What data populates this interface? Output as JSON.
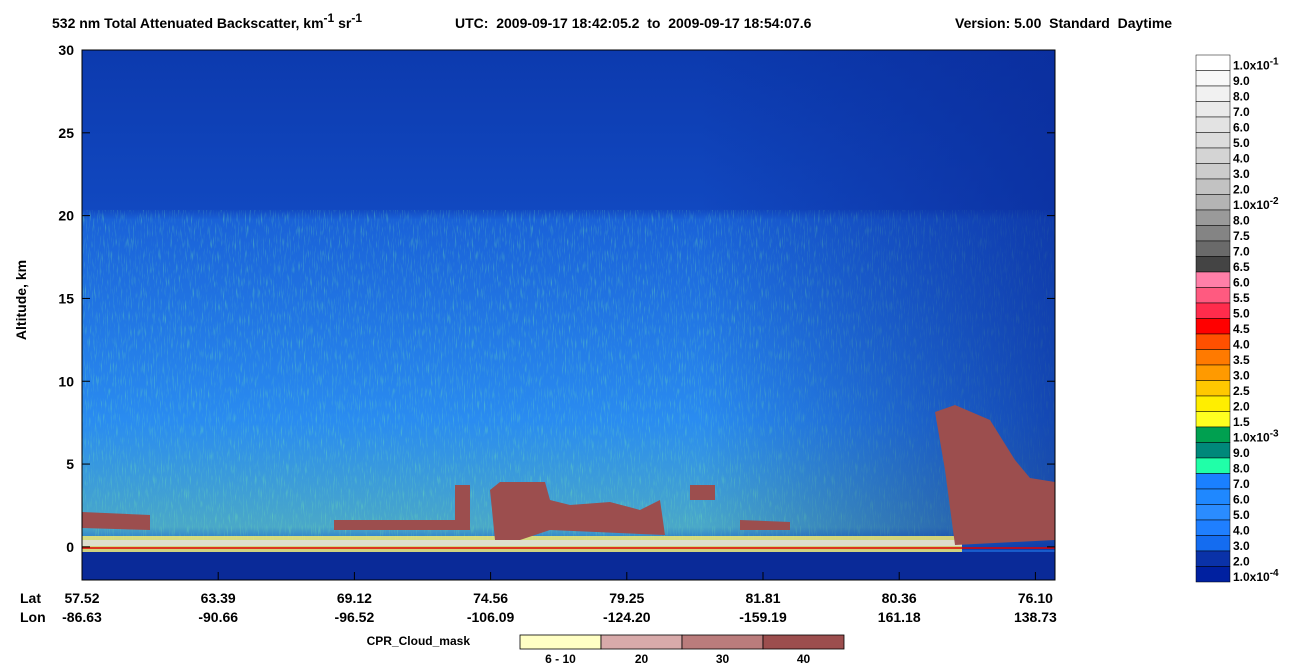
{
  "chart_data": {
    "type": "heatmap",
    "title": {
      "text": "532 nm Total Attenuated Backscatter, km",
      "sup1": "-1",
      "mid": " sr",
      "sup2": "-1",
      "utc": "UTC:  2009-09-17 18:42:05.2  to  2009-09-17 18:54:07.6",
      "version": "Version: 5.00  Standard  Daytime"
    },
    "y_label": "Altitude, km",
    "ylim": [
      -2,
      30
    ],
    "yticks": [
      0,
      5,
      10,
      15,
      20,
      25,
      30
    ],
    "x_row_labels": [
      "Lat",
      "Lon"
    ],
    "lat": [
      "57.52",
      "63.39",
      "69.12",
      "74.56",
      "79.25",
      "81.81",
      "80.36",
      "76.10"
    ],
    "lon": [
      "-86.63",
      "-90.66",
      "-96.52",
      "-106.09",
      "-124.20",
      "-159.19",
      "161.18",
      "138.73"
    ],
    "colorbar": [
      {
        "label": "1.0x10",
        "sup": "-1",
        "color": "#ffffff"
      },
      {
        "label": "9.0",
        "color": "#f8f8f8"
      },
      {
        "label": "8.0",
        "color": "#f1f1f1"
      },
      {
        "label": "7.0",
        "color": "#eaeaea"
      },
      {
        "label": "6.0",
        "color": "#e3e3e3"
      },
      {
        "label": "5.0",
        "color": "#dcdcdc"
      },
      {
        "label": "4.0",
        "color": "#d4d4d4"
      },
      {
        "label": "3.0",
        "color": "#cccccc"
      },
      {
        "label": "2.0",
        "color": "#c2c2c2"
      },
      {
        "label": "1.0x10",
        "sup": "-2",
        "color": "#b4b4b4"
      },
      {
        "label": "8.0",
        "color": "#9a9a9a"
      },
      {
        "label": "7.5",
        "color": "#848484"
      },
      {
        "label": "7.0",
        "color": "#6a6a6a"
      },
      {
        "label": "6.5",
        "color": "#444444"
      },
      {
        "label": "6.0",
        "color": "#ff7fa8"
      },
      {
        "label": "5.5",
        "color": "#ff5a80"
      },
      {
        "label": "5.0",
        "color": "#ff2c4c"
      },
      {
        "label": "4.5",
        "color": "#ff0000"
      },
      {
        "label": "4.0",
        "color": "#ff5000"
      },
      {
        "label": "3.5",
        "color": "#ff7a00"
      },
      {
        "label": "3.0",
        "color": "#ff9a00"
      },
      {
        "label": "2.5",
        "color": "#ffc800"
      },
      {
        "label": "2.0",
        "color": "#ffee00"
      },
      {
        "label": "1.5",
        "color": "#ffff20"
      },
      {
        "label": "1.0x10",
        "sup": "-3",
        "color": "#00a050"
      },
      {
        "label": "9.0",
        "color": "#00887a"
      },
      {
        "label": "8.0",
        "color": "#20ffa8"
      },
      {
        "label": "7.0",
        "color": "#1a80ff"
      },
      {
        "label": "6.0",
        "color": "#1f88ff"
      },
      {
        "label": "5.0",
        "color": "#2a8cff"
      },
      {
        "label": "4.0",
        "color": "#1f7fff"
      },
      {
        "label": "3.0",
        "color": "#146cf0"
      },
      {
        "label": "2.0",
        "color": "#0a32a8"
      },
      {
        "label": "1.0x10",
        "sup": "-4",
        "color": "#0020a0"
      }
    ],
    "mask_legend": {
      "title": "CPR_Cloud_mask",
      "entries": [
        {
          "label": "6 - 10",
          "color": "#ffffc4"
        },
        {
          "label": "20",
          "color": "#d8aaaa"
        },
        {
          "label": "30",
          "color": "#ba7c7c"
        },
        {
          "label": "40",
          "color": "#9c4e4e"
        }
      ]
    }
  }
}
